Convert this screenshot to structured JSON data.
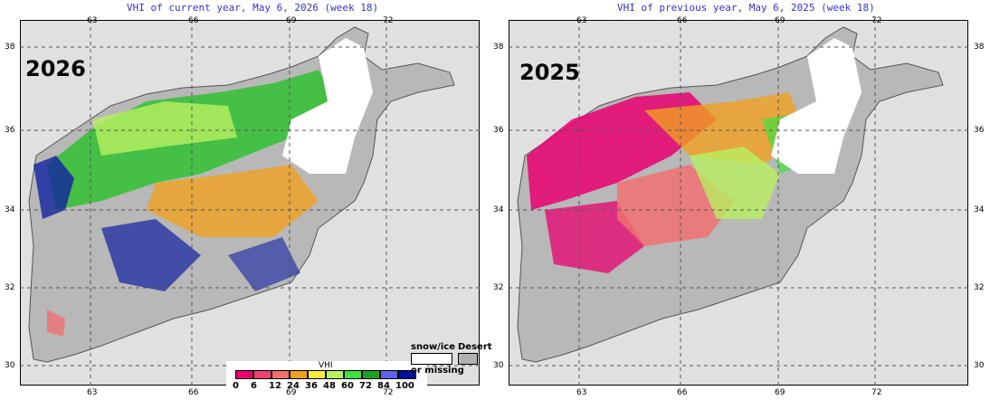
{
  "left": {
    "title": "VHI of current year, May 6, 2026 (week 18)",
    "year": "2026"
  },
  "right": {
    "title": "VHI of previous year, May 6, 2025 (week 18)",
    "year": "2025"
  },
  "lon_ticks": [
    "63",
    "66",
    "69",
    "72"
  ],
  "lat_ticks": [
    "38",
    "36",
    "34",
    "32",
    "30"
  ],
  "legend": {
    "title": "VHI",
    "labels": [
      "0",
      "6",
      "12",
      "24",
      "36",
      "48",
      "60",
      "72",
      "84",
      "100"
    ],
    "colors": [
      "#e8006e",
      "#f04070",
      "#f07070",
      "#f0a020",
      "#f8f040",
      "#b8f060",
      "#40e040",
      "#20a020",
      "#6060f0",
      "#0010a0"
    ],
    "snow_label": "snow/ice",
    "missing_label": "or missing",
    "desert_label": "Desert"
  }
}
